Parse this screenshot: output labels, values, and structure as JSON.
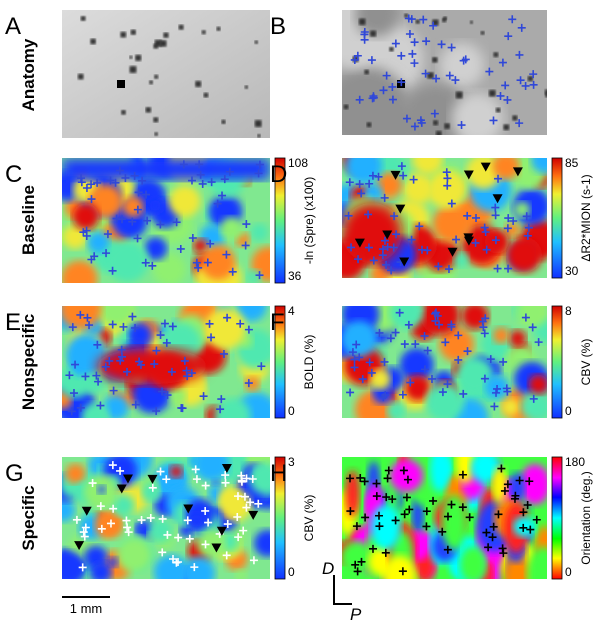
{
  "figure": {
    "row_labels": [
      "Anatomy",
      "Baseline",
      "Nonspecific",
      "Specific"
    ],
    "panels": [
      {
        "letter": "A"
      },
      {
        "letter": "B"
      },
      {
        "letter": "C",
        "colorbar": {
          "max": "108",
          "min": "36",
          "title": "-ln (Spre) (x100)"
        }
      },
      {
        "letter": "D",
        "colorbar": {
          "max": "85",
          "min": "30",
          "title": "ΔR2*MION (s-1)"
        }
      },
      {
        "letter": "E",
        "colorbar": {
          "max": "4",
          "min": "0",
          "title": "BOLD (%)"
        }
      },
      {
        "letter": "F",
        "colorbar": {
          "max": "8",
          "min": "0",
          "title": "CBV (%)"
        }
      },
      {
        "letter": "G",
        "colorbar": {
          "max": "3",
          "min": "0",
          "title": "CBV (%)"
        }
      },
      {
        "letter": "H",
        "colorbar": {
          "max": "180",
          "min": "0",
          "title": "Orientation (deg.)"
        }
      }
    ],
    "scale_bar": "1 mm",
    "axes": {
      "dorsal": "D",
      "posterior": "P"
    }
  }
}
